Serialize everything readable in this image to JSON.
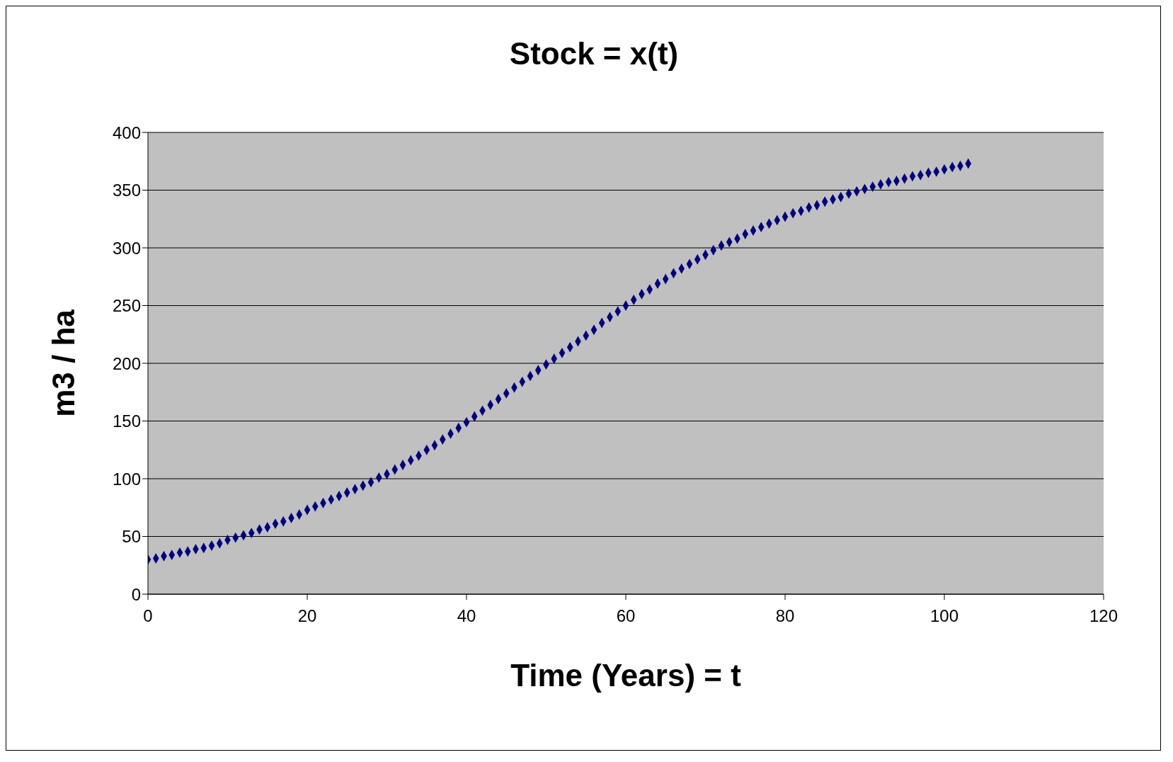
{
  "chart_data": {
    "type": "scatter",
    "title": "Stock = x(t)",
    "xlabel": "Time (Years) = t",
    "ylabel": "m3 / ha",
    "x": [
      0,
      1,
      2,
      3,
      4,
      5,
      6,
      7,
      8,
      9,
      10,
      11,
      12,
      13,
      14,
      15,
      16,
      17,
      18,
      19,
      20,
      21,
      22,
      23,
      24,
      25,
      26,
      27,
      28,
      29,
      30,
      31,
      32,
      33,
      34,
      35,
      36,
      37,
      38,
      39,
      40,
      41,
      42,
      43,
      44,
      45,
      46,
      47,
      48,
      49,
      50,
      51,
      52,
      53,
      54,
      55,
      56,
      57,
      58,
      59,
      60,
      61,
      62,
      63,
      64,
      65,
      66,
      67,
      68,
      69,
      70,
      71,
      72,
      73,
      74,
      75,
      76,
      77,
      78,
      79,
      80,
      81,
      82,
      83,
      84,
      85,
      86,
      87,
      88,
      89,
      90,
      91,
      92,
      93,
      94,
      95,
      96,
      97,
      98,
      99,
      100,
      101,
      102,
      103
    ],
    "series": [
      {
        "color": "#000080",
        "values": [
          30,
          31,
          33,
          34,
          36,
          37,
          39,
          40,
          42,
          44,
          47,
          49,
          51,
          53,
          56,
          58,
          61,
          63,
          66,
          69,
          73,
          76,
          79,
          82,
          85,
          88,
          91,
          94,
          97,
          101,
          104,
          108,
          112,
          116,
          120,
          125,
          129,
          134,
          139,
          144,
          149,
          154,
          159,
          164,
          169,
          174,
          179,
          184,
          189,
          194,
          199,
          204,
          209,
          214,
          219,
          224,
          229,
          235,
          240,
          245,
          250,
          255,
          260,
          264,
          269,
          273,
          278,
          282,
          286,
          290,
          294,
          298,
          302,
          305,
          308,
          312,
          315,
          318,
          321,
          324,
          327,
          330,
          332,
          335,
          337,
          340,
          342,
          344,
          347,
          349,
          351,
          353,
          355,
          357,
          358,
          360,
          362,
          363,
          365,
          366,
          368,
          370,
          371,
          373
        ]
      }
    ],
    "xlim": [
      0,
      120
    ],
    "xticks": [
      0,
      20,
      40,
      60,
      80,
      100,
      120
    ],
    "ylim": [
      0,
      400
    ],
    "yticks": [
      0,
      50,
      100,
      150,
      200,
      250,
      300,
      350,
      400
    ],
    "grid": "y",
    "marker": "diamond",
    "legend": false
  }
}
